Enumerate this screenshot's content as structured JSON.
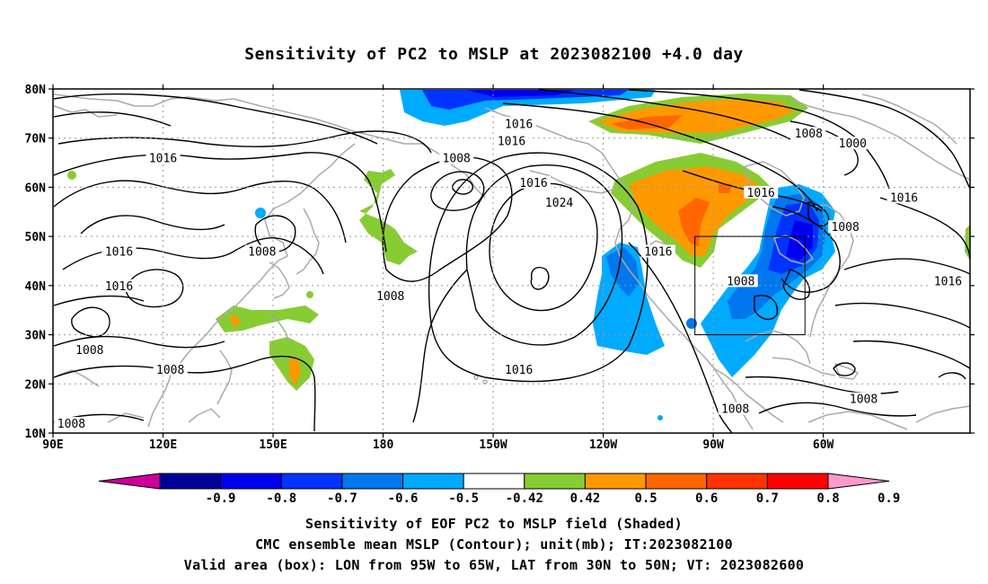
{
  "title": "Sensitivity of PC2 to MSLP at 2023082100 +4.0 day",
  "latitude_labels": [
    "80N",
    "70N",
    "60N",
    "50N",
    "40N",
    "30N",
    "20N",
    "10N"
  ],
  "longitude_labels": [
    "90E",
    "120E",
    "150E",
    "180",
    "150W",
    "120W",
    "90W",
    "60W"
  ],
  "contour_labels": [
    {
      "text": "1016",
      "lon": 217,
      "lat": 73
    },
    {
      "text": "1016",
      "lon": 215,
      "lat": 69.5
    },
    {
      "text": "1008",
      "lon": 296,
      "lat": 71
    },
    {
      "text": "1000",
      "lon": 308,
      "lat": 69
    },
    {
      "text": "1016",
      "lon": 120,
      "lat": 66
    },
    {
      "text": "1008",
      "lon": 200,
      "lat": 66
    },
    {
      "text": "1016",
      "lon": 221,
      "lat": 61
    },
    {
      "text": "1016",
      "lon": 283,
      "lat": 59
    },
    {
      "text": "1016",
      "lon": 322,
      "lat": 58
    },
    {
      "text": "1024",
      "lon": 228,
      "lat": 57
    },
    {
      "text": "1008",
      "lon": 306,
      "lat": 52
    },
    {
      "text": "1016",
      "lon": 108,
      "lat": 47
    },
    {
      "text": "1008",
      "lon": 147,
      "lat": 47
    },
    {
      "text": "1016",
      "lon": 255,
      "lat": 47
    },
    {
      "text": "1016",
      "lon": 108,
      "lat": 40
    },
    {
      "text": "1008",
      "lon": 182,
      "lat": 38
    },
    {
      "text": "1016",
      "lon": 334,
      "lat": 41
    },
    {
      "text": "1008",
      "lon": 277.5,
      "lat": 41
    },
    {
      "text": "1008",
      "lon": 100,
      "lat": 27
    },
    {
      "text": "1008",
      "lon": 122,
      "lat": 23
    },
    {
      "text": "1016",
      "lon": 217,
      "lat": 23
    },
    {
      "text": "1008",
      "lon": 311,
      "lat": 17
    },
    {
      "text": "1008",
      "lon": 276,
      "lat": 15
    },
    {
      "text": "1008",
      "lon": 95,
      "lat": 12
    }
  ],
  "valid_box": {
    "lon_min": 265,
    "lon_max": 295,
    "lat_min": 30,
    "lat_max": 50
  },
  "colorbar": {
    "labels": [
      "-0.9",
      "-0.8",
      "-0.7",
      "-0.6",
      "-0.5",
      "-0.42",
      "0.42",
      "0.5",
      "0.6",
      "0.7",
      "0.8",
      "0.9"
    ],
    "low_color": "#cc0099",
    "colors": [
      "#000099",
      "#0000ee",
      "#0033ff",
      "#0077ee",
      "#00aaff",
      "#ffffff",
      "#88cc33",
      "#ff9900",
      "#ff6600",
      "#ff3300",
      "#ff0000"
    ],
    "high_color": "#ff99cc"
  },
  "captions": [
    "Sensitivity of EOF PC2 to MSLP field (Shaded)",
    "CMC ensemble mean MSLP (Contour); unit(mb); IT:2023082100",
    "Valid area (box): LON from 95W to 65W, LAT from 30N to 50N; VT: 2023082600"
  ]
}
